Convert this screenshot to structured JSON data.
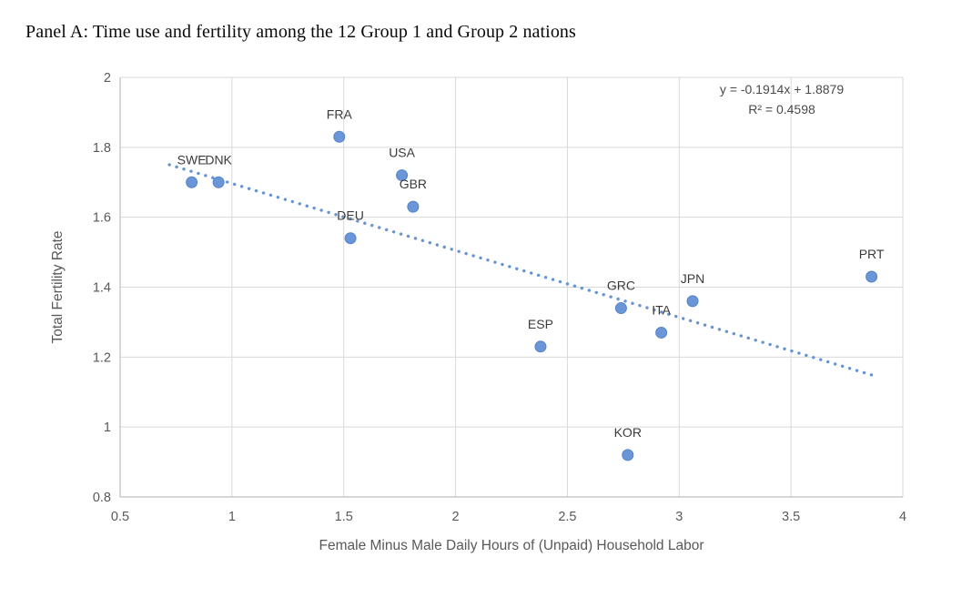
{
  "page": {
    "title": "Panel A: Time use and fertility among the 12 Group 1 and Group 2 nations"
  },
  "chart_data": {
    "type": "scatter",
    "title": "Panel A: Time use and fertility among the 12 Group 1 and Group 2 nations",
    "xlabel": "Female Minus Male Daily Hours of (Unpaid) Household Labor",
    "ylabel": "Total Fertility Rate",
    "xlim": [
      0.5,
      4
    ],
    "ylim": [
      0.8,
      2
    ],
    "x_tick_labels": [
      "0.5",
      "1",
      "1.5",
      "2",
      "2.5",
      "3",
      "3.5",
      "4"
    ],
    "y_tick_labels": [
      "0.8",
      "1",
      "1.2",
      "1.4",
      "1.6",
      "1.8",
      "2"
    ],
    "grid": true,
    "legend": "none",
    "points": [
      {
        "label": "SWE",
        "x": 0.82,
        "y": 1.7
      },
      {
        "label": "DNK",
        "x": 0.94,
        "y": 1.7
      },
      {
        "label": "FRA",
        "x": 1.48,
        "y": 1.83
      },
      {
        "label": "DEU",
        "x": 1.53,
        "y": 1.54
      },
      {
        "label": "USA",
        "x": 1.76,
        "y": 1.72
      },
      {
        "label": "GBR",
        "x": 1.81,
        "y": 1.63
      },
      {
        "label": "ESP",
        "x": 2.38,
        "y": 1.23
      },
      {
        "label": "GRC",
        "x": 2.74,
        "y": 1.34
      },
      {
        "label": "KOR",
        "x": 2.77,
        "y": 0.92
      },
      {
        "label": "ITA",
        "x": 2.92,
        "y": 1.27
      },
      {
        "label": "JPN",
        "x": 3.06,
        "y": 1.36
      },
      {
        "label": "PRT",
        "x": 3.86,
        "y": 1.43
      }
    ],
    "trendline": {
      "slope": -0.1914,
      "intercept": 1.8879,
      "x_start": 0.72,
      "x_end": 3.86,
      "style": "dotted",
      "equation_text": "y = -0.1914x + 1.8879",
      "r2_text": "R² = 0.4598"
    },
    "colors": {
      "marker_fill": "#6A95D6",
      "marker_stroke": "#5585C8",
      "trendline": "#6794D2",
      "grid": "#D9D9D9",
      "axis_line": "#BFBFBF",
      "tick_text": "#595959",
      "axis_title_text": "#595959",
      "point_label_text": "#3b3b3b",
      "equation_text_color": "#4a4a4a"
    }
  }
}
